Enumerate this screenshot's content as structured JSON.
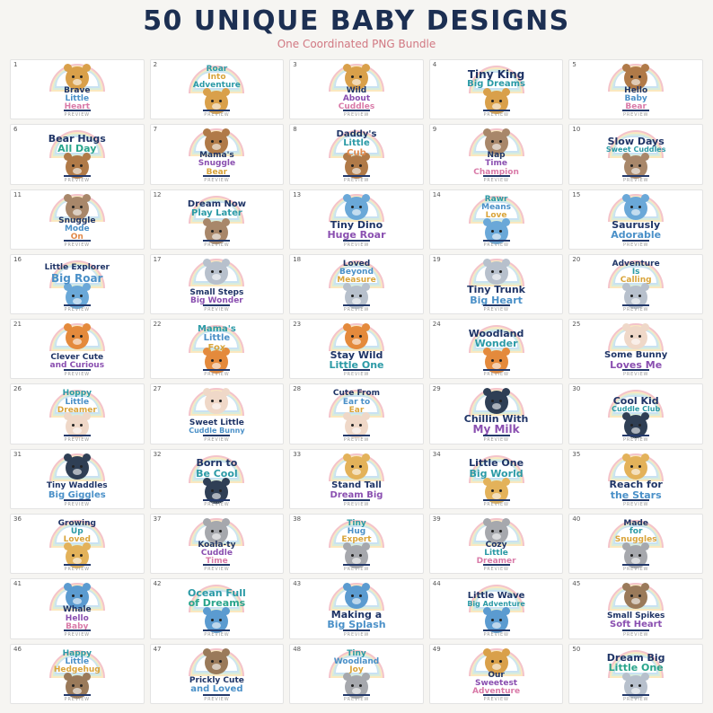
{
  "title": "50 UNIQUE BABY DESIGNS",
  "subtitle": "One Coordinated PNG Bundle",
  "preview_label": "PREVIEW",
  "colors": {
    "navy": "#1f3466",
    "teal": "#2b9aa6",
    "sky": "#4a90c8",
    "pink": "#d97aa8",
    "purple": "#8a4fb0",
    "gold": "#d9a43a",
    "orange": "#e0894a",
    "green": "#2aa58c"
  },
  "animals": {
    "lion": "#d9a04a",
    "bear": "#b07a48",
    "sloth": "#a8876a",
    "dino": "#6aa8d8",
    "elephant": "#b7c0cc",
    "fox": "#e48a3c",
    "bunny": "#efd8c8",
    "penguin": "#2f3f55",
    "giraffe": "#e3b25a",
    "koala": "#a6a8ad",
    "whale": "#5b9bd0",
    "hedgehog": "#9a7a5a"
  },
  "cards": [
    {
      "num": "1",
      "animal": "lion",
      "layout": "top",
      "lines": [
        {
          "t": "Brave",
          "c": "navy",
          "s": 9
        },
        {
          "t": "Little",
          "c": "sky",
          "s": 9
        },
        {
          "t": "Heart",
          "c": "pink",
          "s": 9
        }
      ]
    },
    {
      "num": "2",
      "animal": "lion",
      "layout": "bottom",
      "lines": [
        {
          "t": "Roar",
          "c": "teal",
          "s": 9
        },
        {
          "t": "Into",
          "c": "gold",
          "s": 9
        },
        {
          "t": "Adventure",
          "c": "teal",
          "s": 9
        }
      ]
    },
    {
      "num": "3",
      "animal": "lion",
      "layout": "top",
      "lines": [
        {
          "t": "Wild",
          "c": "navy",
          "s": 9
        },
        {
          "t": "About",
          "c": "purple",
          "s": 9
        },
        {
          "t": "Cuddles",
          "c": "pink",
          "s": 9
        }
      ]
    },
    {
      "num": "4",
      "animal": "lion",
      "layout": "bottom",
      "lines": [
        {
          "t": "Tiny King",
          "c": "navy",
          "s": 12
        },
        {
          "t": "Big Dreams",
          "c": "teal",
          "s": 10
        }
      ]
    },
    {
      "num": "5",
      "animal": "bear",
      "layout": "top",
      "lines": [
        {
          "t": "Hello",
          "c": "navy",
          "s": 9
        },
        {
          "t": "Baby",
          "c": "sky",
          "s": 9
        },
        {
          "t": "Bear",
          "c": "pink",
          "s": 9
        }
      ]
    },
    {
      "num": "6",
      "animal": "bear",
      "layout": "bottom",
      "lines": [
        {
          "t": "Bear Hugs",
          "c": "navy",
          "s": 11
        },
        {
          "t": "All Day",
          "c": "green",
          "s": 11
        }
      ]
    },
    {
      "num": "7",
      "animal": "bear",
      "layout": "top",
      "lines": [
        {
          "t": "Mama's",
          "c": "navy",
          "s": 9
        },
        {
          "t": "Snuggle",
          "c": "purple",
          "s": 9
        },
        {
          "t": "Bear",
          "c": "gold",
          "s": 9
        }
      ]
    },
    {
      "num": "8",
      "animal": "bear",
      "layout": "bottom",
      "lines": [
        {
          "t": "Daddy's",
          "c": "navy",
          "s": 10
        },
        {
          "t": "Little",
          "c": "teal",
          "s": 10
        },
        {
          "t": "Cub",
          "c": "orange",
          "s": 10
        }
      ]
    },
    {
      "num": "9",
      "animal": "sloth",
      "layout": "top",
      "lines": [
        {
          "t": "Nap",
          "c": "navy",
          "s": 9
        },
        {
          "t": "Time",
          "c": "purple",
          "s": 9
        },
        {
          "t": "Champion",
          "c": "pink",
          "s": 9
        }
      ]
    },
    {
      "num": "10",
      "animal": "sloth",
      "layout": "bottom",
      "lines": [
        {
          "t": "Slow Days",
          "c": "navy",
          "s": 11
        },
        {
          "t": "Sweet Cuddles",
          "c": "teal",
          "s": 8
        }
      ]
    },
    {
      "num": "11",
      "animal": "sloth",
      "layout": "top",
      "lines": [
        {
          "t": "Snuggle",
          "c": "navy",
          "s": 9
        },
        {
          "t": "Mode",
          "c": "sky",
          "s": 9
        },
        {
          "t": "On",
          "c": "orange",
          "s": 9
        }
      ]
    },
    {
      "num": "12",
      "animal": "sloth",
      "layout": "bottom",
      "lines": [
        {
          "t": "Dream Now",
          "c": "navy",
          "s": 10
        },
        {
          "t": "Play Later",
          "c": "teal",
          "s": 10
        }
      ]
    },
    {
      "num": "13",
      "animal": "dino",
      "layout": "top",
      "lines": [
        {
          "t": "Tiny Dino",
          "c": "navy",
          "s": 11
        },
        {
          "t": "Huge Roar",
          "c": "purple",
          "s": 11
        }
      ]
    },
    {
      "num": "14",
      "animal": "dino",
      "layout": "bottom",
      "lines": [
        {
          "t": "Rawr",
          "c": "teal",
          "s": 9
        },
        {
          "t": "Means",
          "c": "sky",
          "s": 9
        },
        {
          "t": "Love",
          "c": "gold",
          "s": 9
        }
      ]
    },
    {
      "num": "15",
      "animal": "dino",
      "layout": "top",
      "lines": [
        {
          "t": "Saurusly",
          "c": "navy",
          "s": 11
        },
        {
          "t": "Adorable",
          "c": "sky",
          "s": 11
        }
      ]
    },
    {
      "num": "16",
      "animal": "dino",
      "layout": "bottom",
      "lines": [
        {
          "t": "Little Explorer",
          "c": "navy",
          "s": 9
        },
        {
          "t": "Big Roar",
          "c": "sky",
          "s": 12
        }
      ]
    },
    {
      "num": "17",
      "animal": "elephant",
      "layout": "top",
      "lines": [
        {
          "t": "Small Steps",
          "c": "navy",
          "s": 9
        },
        {
          "t": "Big Wonder",
          "c": "purple",
          "s": 9
        }
      ]
    },
    {
      "num": "18",
      "animal": "elephant",
      "layout": "bottom",
      "lines": [
        {
          "t": "Loved",
          "c": "navy",
          "s": 9
        },
        {
          "t": "Beyond",
          "c": "sky",
          "s": 9
        },
        {
          "t": "Measure",
          "c": "gold",
          "s": 9
        }
      ]
    },
    {
      "num": "19",
      "animal": "elephant",
      "layout": "top",
      "lines": [
        {
          "t": "Tiny Trunk",
          "c": "navy",
          "s": 11
        },
        {
          "t": "Big Heart",
          "c": "sky",
          "s": 11
        }
      ]
    },
    {
      "num": "20",
      "animal": "elephant",
      "layout": "bottom",
      "lines": [
        {
          "t": "Adventure",
          "c": "navy",
          "s": 9
        },
        {
          "t": "Is",
          "c": "teal",
          "s": 9
        },
        {
          "t": "Calling",
          "c": "gold",
          "s": 9
        }
      ]
    },
    {
      "num": "21",
      "animal": "fox",
      "layout": "top",
      "lines": [
        {
          "t": "Clever Cute",
          "c": "navy",
          "s": 9
        },
        {
          "t": "and Curious",
          "c": "purple",
          "s": 9
        }
      ]
    },
    {
      "num": "22",
      "animal": "fox",
      "layout": "bottom",
      "lines": [
        {
          "t": "Mama's",
          "c": "teal",
          "s": 10
        },
        {
          "t": "Little",
          "c": "sky",
          "s": 10
        },
        {
          "t": "Fox",
          "c": "gold",
          "s": 10
        }
      ]
    },
    {
      "num": "23",
      "animal": "fox",
      "layout": "top",
      "lines": [
        {
          "t": "Stay Wild",
          "c": "navy",
          "s": 11
        },
        {
          "t": "Little One",
          "c": "teal",
          "s": 11
        }
      ]
    },
    {
      "num": "24",
      "animal": "fox",
      "layout": "bottom",
      "lines": [
        {
          "t": "Woodland",
          "c": "navy",
          "s": 11
        },
        {
          "t": "Wonder",
          "c": "teal",
          "s": 11
        }
      ]
    },
    {
      "num": "25",
      "animal": "bunny",
      "layout": "top",
      "lines": [
        {
          "t": "Some Bunny",
          "c": "navy",
          "s": 10
        },
        {
          "t": "Loves Me",
          "c": "purple",
          "s": 11
        }
      ]
    },
    {
      "num": "26",
      "animal": "bunny",
      "layout": "bottom",
      "lines": [
        {
          "t": "Hoppy",
          "c": "teal",
          "s": 9
        },
        {
          "t": "Little",
          "c": "sky",
          "s": 9
        },
        {
          "t": "Dreamer",
          "c": "gold",
          "s": 9
        }
      ]
    },
    {
      "num": "27",
      "animal": "bunny",
      "layout": "top",
      "lines": [
        {
          "t": "Sweet Little",
          "c": "navy",
          "s": 9
        },
        {
          "t": "Cuddle Bunny",
          "c": "sky",
          "s": 8
        }
      ]
    },
    {
      "num": "28",
      "animal": "bunny",
      "layout": "bottom",
      "lines": [
        {
          "t": "Cute From",
          "c": "navy",
          "s": 9
        },
        {
          "t": "Ear to",
          "c": "sky",
          "s": 9
        },
        {
          "t": "Ear",
          "c": "gold",
          "s": 9
        }
      ]
    },
    {
      "num": "29",
      "animal": "penguin",
      "layout": "top",
      "lines": [
        {
          "t": "Chillin With",
          "c": "navy",
          "s": 11
        },
        {
          "t": "My Milk",
          "c": "purple",
          "s": 12
        }
      ]
    },
    {
      "num": "30",
      "animal": "penguin",
      "layout": "bottom",
      "lines": [
        {
          "t": "Cool Kid",
          "c": "navy",
          "s": 11
        },
        {
          "t": "Cuddle Club",
          "c": "teal",
          "s": 8
        }
      ]
    },
    {
      "num": "31",
      "animal": "penguin",
      "layout": "top",
      "lines": [
        {
          "t": "Tiny Waddles",
          "c": "navy",
          "s": 9
        },
        {
          "t": "Big Giggles",
          "c": "sky",
          "s": 10
        }
      ]
    },
    {
      "num": "32",
      "animal": "penguin",
      "layout": "bottom",
      "lines": [
        {
          "t": "Born to",
          "c": "navy",
          "s": 11
        },
        {
          "t": "Be Cool",
          "c": "teal",
          "s": 11
        }
      ]
    },
    {
      "num": "33",
      "animal": "giraffe",
      "layout": "top",
      "lines": [
        {
          "t": "Stand Tall",
          "c": "navy",
          "s": 10
        },
        {
          "t": "Dream Big",
          "c": "purple",
          "s": 10
        }
      ]
    },
    {
      "num": "34",
      "animal": "giraffe",
      "layout": "bottom",
      "lines": [
        {
          "t": "Little One",
          "c": "navy",
          "s": 11
        },
        {
          "t": "Big World",
          "c": "teal",
          "s": 11
        }
      ]
    },
    {
      "num": "35",
      "animal": "giraffe",
      "layout": "top",
      "lines": [
        {
          "t": "Reach for",
          "c": "navy",
          "s": 11
        },
        {
          "t": "the Stars",
          "c": "sky",
          "s": 11
        }
      ]
    },
    {
      "num": "36",
      "animal": "giraffe",
      "layout": "bottom",
      "lines": [
        {
          "t": "Growing",
          "c": "navy",
          "s": 9
        },
        {
          "t": "Up",
          "c": "teal",
          "s": 9
        },
        {
          "t": "Loved",
          "c": "gold",
          "s": 9
        }
      ]
    },
    {
      "num": "37",
      "animal": "koala",
      "layout": "top",
      "lines": [
        {
          "t": "Koala-ty",
          "c": "navy",
          "s": 9
        },
        {
          "t": "Cuddle",
          "c": "purple",
          "s": 9
        },
        {
          "t": "Time",
          "c": "pink",
          "s": 9
        }
      ]
    },
    {
      "num": "38",
      "animal": "koala",
      "layout": "bottom",
      "lines": [
        {
          "t": "Tiny",
          "c": "teal",
          "s": 9
        },
        {
          "t": "Hug",
          "c": "sky",
          "s": 9
        },
        {
          "t": "Expert",
          "c": "gold",
          "s": 9
        }
      ]
    },
    {
      "num": "39",
      "animal": "koala",
      "layout": "top",
      "lines": [
        {
          "t": "Cozy",
          "c": "navy",
          "s": 9
        },
        {
          "t": "Little",
          "c": "teal",
          "s": 9
        },
        {
          "t": "Dreamer",
          "c": "pink",
          "s": 9
        }
      ]
    },
    {
      "num": "40",
      "animal": "koala",
      "layout": "bottom",
      "lines": [
        {
          "t": "Made",
          "c": "navy",
          "s": 9
        },
        {
          "t": "for",
          "c": "teal",
          "s": 9
        },
        {
          "t": "Snuggles",
          "c": "gold",
          "s": 9
        }
      ]
    },
    {
      "num": "41",
      "animal": "whale",
      "layout": "top",
      "lines": [
        {
          "t": "Whale",
          "c": "navy",
          "s": 9
        },
        {
          "t": "Hello",
          "c": "purple",
          "s": 9
        },
        {
          "t": "Baby",
          "c": "pink",
          "s": 9
        }
      ]
    },
    {
      "num": "42",
      "animal": "whale",
      "layout": "bottom",
      "lines": [
        {
          "t": "Ocean Full",
          "c": "teal",
          "s": 11
        },
        {
          "t": "of Dreams",
          "c": "green",
          "s": 11
        }
      ]
    },
    {
      "num": "43",
      "animal": "whale",
      "layout": "top",
      "lines": [
        {
          "t": "Making a",
          "c": "navy",
          "s": 11
        },
        {
          "t": "Big Splash",
          "c": "sky",
          "s": 11
        }
      ]
    },
    {
      "num": "44",
      "animal": "whale",
      "layout": "bottom",
      "lines": [
        {
          "t": "Little Wave",
          "c": "navy",
          "s": 10
        },
        {
          "t": "Big Adventure",
          "c": "teal",
          "s": 8
        }
      ]
    },
    {
      "num": "45",
      "animal": "hedgehog",
      "layout": "top",
      "lines": [
        {
          "t": "Small Spikes",
          "c": "navy",
          "s": 9
        },
        {
          "t": "Soft Heart",
          "c": "purple",
          "s": 10
        }
      ]
    },
    {
      "num": "46",
      "animal": "hedgehog",
      "layout": "bottom",
      "lines": [
        {
          "t": "Happy",
          "c": "teal",
          "s": 9
        },
        {
          "t": "Little",
          "c": "sky",
          "s": 9
        },
        {
          "t": "Hedgehug",
          "c": "gold",
          "s": 9
        }
      ]
    },
    {
      "num": "47",
      "animal": "hedgehog",
      "layout": "top",
      "lines": [
        {
          "t": "Prickly Cute",
          "c": "navy",
          "s": 9
        },
        {
          "t": "and Loved",
          "c": "sky",
          "s": 10
        }
      ]
    },
    {
      "num": "48",
      "animal": "koala",
      "layout": "bottom",
      "lines": [
        {
          "t": "Tiny",
          "c": "teal",
          "s": 9
        },
        {
          "t": "Woodland",
          "c": "sky",
          "s": 9
        },
        {
          "t": "Joy",
          "c": "gold",
          "s": 9
        }
      ]
    },
    {
      "num": "49",
      "animal": "lion",
      "layout": "top",
      "lines": [
        {
          "t": "Our",
          "c": "navy",
          "s": 9
        },
        {
          "t": "Sweetest",
          "c": "purple",
          "s": 9
        },
        {
          "t": "Adventure",
          "c": "pink",
          "s": 9
        }
      ]
    },
    {
      "num": "50",
      "animal": "elephant",
      "layout": "bottom",
      "lines": [
        {
          "t": "Dream Big",
          "c": "navy",
          "s": 11
        },
        {
          "t": "Little One",
          "c": "green",
          "s": 11
        }
      ]
    }
  ]
}
